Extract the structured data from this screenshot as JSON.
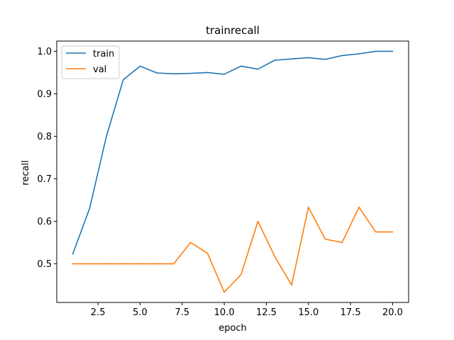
{
  "chart_data": {
    "type": "line",
    "title": "trainrecall",
    "xlabel": "epoch",
    "ylabel": "recall",
    "xlim": [
      0.05,
      20.95
    ],
    "ylim": [
      0.409,
      1.024
    ],
    "xticks": [
      2.5,
      5.0,
      7.5,
      10.0,
      12.5,
      15.0,
      17.5,
      20.0
    ],
    "xtick_labels": [
      "2.5",
      "5.0",
      "7.5",
      "10.0",
      "12.5",
      "15.0",
      "17.5",
      "20.0"
    ],
    "yticks": [
      0.5,
      0.6,
      0.7,
      0.8,
      0.9,
      1.0
    ],
    "ytick_labels": [
      "0.5",
      "0.6",
      "0.7",
      "0.8",
      "0.9",
      "1.0"
    ],
    "grid": false,
    "legend_position": "top-left",
    "x": [
      1,
      2,
      3,
      4,
      5,
      6,
      7,
      8,
      9,
      10,
      11,
      12,
      13,
      14,
      15,
      16,
      17,
      18,
      19,
      20
    ],
    "series": [
      {
        "name": "train",
        "color": "#1f77b4",
        "values": [
          0.523,
          0.63,
          0.8,
          0.933,
          0.965,
          0.949,
          0.947,
          0.948,
          0.95,
          0.946,
          0.965,
          0.958,
          0.979,
          0.982,
          0.985,
          0.981,
          0.99,
          0.994,
          1.0,
          1.0
        ]
      },
      {
        "name": "val",
        "color": "#ff7f0e",
        "values": [
          0.5,
          0.5,
          0.5,
          0.5,
          0.5,
          0.5,
          0.5,
          0.55,
          0.525,
          0.433,
          0.475,
          0.6,
          0.517,
          0.45,
          0.633,
          0.558,
          0.55,
          0.633,
          0.575,
          0.575
        ]
      }
    ]
  }
}
